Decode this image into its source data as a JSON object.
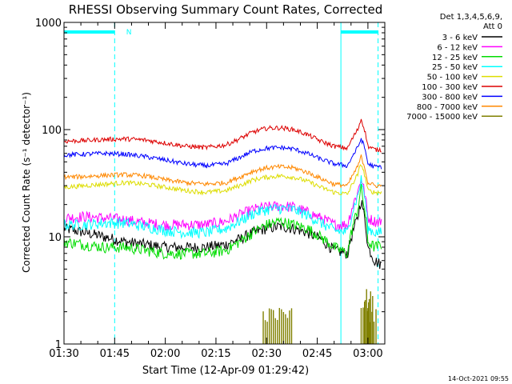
{
  "chart_data": {
    "type": "line",
    "title": "RHESSI Observing Summary Count Rates, Corrected",
    "xlabel": "Start Time (12-Apr-09 01:29:42)",
    "ylabel": "Corrected Count Rate (s⁻¹ detector⁻¹)",
    "y_scale": "log",
    "ylim": [
      1,
      1000
    ],
    "xlim": [
      "01:30",
      "03:05"
    ],
    "x_ticks": [
      "01:30",
      "01:45",
      "02:00",
      "02:15",
      "02:30",
      "02:45",
      "03:00"
    ],
    "y_ticks": [
      "1",
      "10",
      "100",
      "1000"
    ],
    "grid": false,
    "legend_header": [
      "Det 1,3,4,5,6,9,",
      "Att 0"
    ],
    "legend_position": "right",
    "annotations": [
      {
        "text": "N",
        "near": "01:47",
        "at_y": "top"
      }
    ],
    "night_intervals": [
      {
        "start": "01:30",
        "end": "01:45"
      },
      {
        "start": "02:52",
        "end": "03:03"
      }
    ],
    "series": [
      {
        "name": "3 - 6 keV",
        "color": "#000000",
        "x": [
          "01:30",
          "01:36",
          "01:42",
          "01:48",
          "01:54",
          "02:00",
          "02:06",
          "02:12",
          "02:18",
          "02:22",
          "02:26",
          "02:30",
          "02:34",
          "02:38",
          "02:42",
          "02:46",
          "02:50",
          "02:54",
          "02:57",
          "02:58",
          "02:59",
          "03:00",
          "03:02",
          "03:04"
        ],
        "values": [
          12,
          11,
          10,
          9,
          8.5,
          8,
          8,
          8,
          8.5,
          9.5,
          11,
          12,
          12.5,
          12,
          11,
          9.5,
          7.5,
          7,
          15,
          22,
          15,
          8,
          6,
          5.5
        ]
      },
      {
        "name": "6 - 12 keV",
        "color": "#ff00ff",
        "x": [
          "01:30",
          "01:36",
          "01:42",
          "01:48",
          "01:54",
          "02:00",
          "02:06",
          "02:12",
          "02:18",
          "02:22",
          "02:26",
          "02:30",
          "02:34",
          "02:38",
          "02:42",
          "02:46",
          "02:50",
          "02:54",
          "02:57",
          "02:58",
          "02:59",
          "03:00",
          "03:02",
          "03:04"
        ],
        "values": [
          15,
          15.5,
          15,
          14.5,
          13.5,
          13,
          13,
          13,
          14,
          16,
          18,
          19,
          19.5,
          19,
          17,
          15,
          13,
          13,
          26,
          35,
          26,
          15,
          14,
          14
        ]
      },
      {
        "name": "12 - 25 keV",
        "color": "#00dd00",
        "x": [
          "01:30",
          "01:36",
          "01:42",
          "01:48",
          "01:54",
          "02:00",
          "02:06",
          "02:12",
          "02:18",
          "02:22",
          "02:26",
          "02:30",
          "02:34",
          "02:38",
          "02:42",
          "02:46",
          "02:50",
          "02:54",
          "02:57",
          "02:58",
          "02:59",
          "03:00",
          "03:02",
          "03:04"
        ],
        "values": [
          9,
          8.5,
          8,
          8,
          7.5,
          7,
          7,
          7,
          7.5,
          9,
          11,
          13,
          14,
          13,
          12,
          10,
          8,
          7,
          18,
          28,
          18,
          9,
          8,
          8.5
        ]
      },
      {
        "name": "25 - 50 keV",
        "color": "#00ffff",
        "x": [
          "01:30",
          "01:36",
          "01:42",
          "01:48",
          "01:54",
          "02:00",
          "02:06",
          "02:12",
          "02:18",
          "02:22",
          "02:26",
          "02:30",
          "02:34",
          "02:38",
          "02:42",
          "02:46",
          "02:50",
          "02:54",
          "02:57",
          "02:58",
          "02:59",
          "03:00",
          "03:02",
          "03:04"
        ],
        "values": [
          13,
          13,
          13.5,
          13.5,
          12.5,
          11.5,
          11,
          11,
          12,
          14,
          16.5,
          18,
          18.5,
          18,
          16,
          13.5,
          11.5,
          11,
          24,
          34,
          24,
          12,
          11,
          11
        ]
      },
      {
        "name": "50 - 100 keV",
        "color": "#dddd00",
        "x": [
          "01:30",
          "01:36",
          "01:42",
          "01:48",
          "01:54",
          "02:00",
          "02:06",
          "02:12",
          "02:18",
          "02:22",
          "02:26",
          "02:30",
          "02:34",
          "02:38",
          "02:42",
          "02:46",
          "02:50",
          "02:54",
          "02:57",
          "02:58",
          "02:59",
          "03:00",
          "03:02",
          "03:04"
        ],
        "values": [
          29,
          30,
          31,
          32,
          31,
          29,
          27,
          26,
          27,
          30,
          34,
          36,
          37,
          36,
          33,
          29,
          26,
          25,
          38,
          48,
          38,
          27,
          26,
          26
        ]
      },
      {
        "name": "100 - 300 keV",
        "color": "#dd0000",
        "x": [
          "01:30",
          "01:36",
          "01:42",
          "01:48",
          "01:54",
          "02:00",
          "02:06",
          "02:12",
          "02:18",
          "02:22",
          "02:26",
          "02:30",
          "02:34",
          "02:38",
          "02:42",
          "02:46",
          "02:50",
          "02:54",
          "02:57",
          "02:58",
          "02:59",
          "03:00",
          "03:02",
          "03:04"
        ],
        "values": [
          78,
          79,
          81,
          82,
          80,
          75,
          70,
          68,
          72,
          82,
          95,
          103,
          104,
          100,
          90,
          78,
          70,
          67,
          100,
          125,
          100,
          70,
          65,
          65
        ]
      },
      {
        "name": "300 - 800 keV",
        "color": "#0000ff",
        "x": [
          "01:30",
          "01:36",
          "01:42",
          "01:48",
          "01:54",
          "02:00",
          "02:06",
          "02:12",
          "02:18",
          "02:22",
          "02:26",
          "02:30",
          "02:34",
          "02:38",
          "02:42",
          "02:46",
          "02:50",
          "02:54",
          "02:57",
          "02:58",
          "02:59",
          "03:00",
          "03:02",
          "03:04"
        ],
        "values": [
          58,
          59,
          60,
          59,
          56,
          52,
          48,
          46,
          48,
          55,
          63,
          67,
          68,
          66,
          60,
          53,
          48,
          46,
          68,
          82,
          68,
          48,
          45,
          45
        ]
      },
      {
        "name": "800 - 7000 keV",
        "color": "#ff8800",
        "x": [
          "01:30",
          "01:36",
          "01:42",
          "01:48",
          "01:54",
          "02:00",
          "02:06",
          "02:12",
          "02:18",
          "02:22",
          "02:26",
          "02:30",
          "02:34",
          "02:38",
          "02:42",
          "02:46",
          "02:50",
          "02:54",
          "02:57",
          "02:58",
          "02:59",
          "03:00",
          "03:02",
          "03:04"
        ],
        "values": [
          36,
          36.5,
          37.5,
          38,
          37,
          34,
          32,
          31,
          32,
          36,
          41,
          44,
          45,
          44,
          40,
          35,
          31,
          30,
          45,
          56,
          45,
          32,
          30,
          30
        ]
      },
      {
        "name": "7000 - 15000 keV",
        "color": "#808000",
        "x": [
          "02:29",
          "02:32",
          "02:35",
          "02:58",
          "02:59",
          "03:00"
        ],
        "values": [
          2.0,
          2.0,
          2.0,
          2.5,
          3.0,
          2.0
        ]
      }
    ]
  },
  "footer_timestamp": "14-Oct-2021 09:55"
}
